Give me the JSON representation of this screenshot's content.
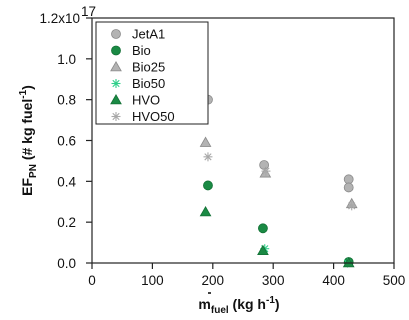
{
  "chart_data": {
    "type": "scatter",
    "title": "",
    "xlabel": {
      "main": "m",
      "sub": "fuel",
      "units_open": " (kg h",
      "units_exp": "-1",
      "units_close": ")"
    },
    "ylabel": {
      "main": "EF",
      "sub": "PN",
      "units_open": " (# kg fuel",
      "units_exp": "-1",
      "units_close": ")"
    },
    "xlim": [
      0,
      500
    ],
    "ylim": [
      0,
      1.2e+17
    ],
    "x_ticks": [
      0,
      100,
      200,
      300,
      400,
      500
    ],
    "y_ticks": [
      0.0,
      0.2,
      0.4,
      0.6,
      0.8,
      1.0,
      1.2
    ],
    "y_tick_labels": [
      "0.0",
      "0.2",
      "0.4",
      "0.6",
      "0.8",
      "1.0",
      "1.2x10"
    ],
    "y_scale_exponent": "17",
    "y_scale": 1e+17,
    "legend_position": "top-left",
    "series": [
      {
        "name": "JetA1",
        "marker": "circle",
        "color": "#b3b3b3",
        "stroke": "#8a8a8a",
        "x": [
          192,
          285,
          425,
          425
        ],
        "y": [
          0.8,
          0.48,
          0.41,
          0.37
        ]
      },
      {
        "name": "Bio",
        "marker": "circle",
        "color": "#1a8a44",
        "stroke": "#127035",
        "x": [
          192,
          283,
          425
        ],
        "y": [
          0.38,
          0.17,
          0.005
        ]
      },
      {
        "name": "Bio25",
        "marker": "triangle",
        "color": "#b3b3b3",
        "stroke": "#8a8a8a",
        "x": [
          188,
          287,
          430
        ],
        "y": [
          0.59,
          0.44,
          0.29
        ]
      },
      {
        "name": "Bio50",
        "marker": "asterisk",
        "color": "#2fcf8a",
        "stroke": "#2fcf8a",
        "x": [
          286,
          423
        ],
        "y": [
          0.07,
          0.0
        ]
      },
      {
        "name": "HVO",
        "marker": "triangle",
        "color": "#1a8a44",
        "stroke": "#127035",
        "x": [
          188,
          283,
          425
        ],
        "y": [
          0.25,
          0.06,
          0.0
        ]
      },
      {
        "name": "HVO50",
        "marker": "asterisk",
        "color": "#a8a8a8",
        "stroke": "#a8a8a8",
        "x": [
          192,
          288,
          430
        ],
        "y": [
          0.52,
          0.45,
          0.28
        ]
      }
    ]
  }
}
